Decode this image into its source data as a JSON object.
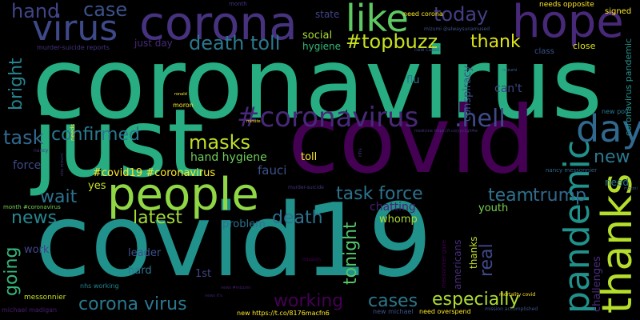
{
  "background": "#000000",
  "palette": {
    "purple": "#440154",
    "indigo": "#3b528b",
    "blue": "#31688e",
    "teal": "#21918c",
    "green": "#35b779",
    "lime": "#8fd744",
    "yellow": "#fde725"
  },
  "words": [
    {
      "text": "coronavirus",
      "color": "#27ad81"
    },
    {
      "text": "covid19",
      "color": "#21918c"
    },
    {
      "text": "covid",
      "color": "#440154"
    },
    {
      "text": "just",
      "color": "#27ad81"
    },
    {
      "text": "people",
      "color": "#8fd744"
    },
    {
      "text": "corona",
      "color": "#46327e"
    },
    {
      "text": "hope",
      "color": "#482878"
    },
    {
      "text": "like",
      "color": "#5ec962"
    },
    {
      "text": "virus",
      "color": "#3e4989"
    },
    {
      "text": "day",
      "color": "#31688e"
    },
    {
      "text": "pandemic",
      "color": "#21918c"
    },
    {
      "text": "thanks",
      "color": "#b5de2b"
    },
    {
      "text": "#coronavirus",
      "color": "#482878"
    },
    {
      "text": ".hell",
      "color": "#3e4989"
    },
    {
      "text": "today",
      "color": "#433e85"
    },
    {
      "text": "#topbuzz",
      "color": "#c8e020"
    },
    {
      "text": "death toll",
      "color": "#2a788e"
    },
    {
      "text": "thank",
      "color": "#dde318"
    },
    {
      "text": "hand",
      "color": "#414487"
    },
    {
      "text": "case",
      "color": "#3b528b"
    },
    {
      "text": "confirmed",
      "color": "#2a788e"
    },
    {
      "text": "bright",
      "color": "#26828e"
    },
    {
      "text": "masks",
      "color": "#bddf26"
    },
    {
      "text": "task",
      "color": "#31688e"
    },
    {
      "text": "new",
      "color": "#2a788e"
    },
    {
      "text": "hand hygiene",
      "color": "#6ece58"
    },
    {
      "text": "#covid19 #coronavirus",
      "color": "#fde725"
    },
    {
      "text": "force",
      "color": "#3e4989"
    },
    {
      "text": "fauci",
      "color": "#3b528b"
    },
    {
      "text": "toll",
      "color": "#fde725"
    },
    {
      "text": "wait",
      "color": "#2c728e"
    },
    {
      "text": "yes",
      "color": "#c8e020"
    },
    {
      "text": "task force",
      "color": "#2c728e"
    },
    {
      "text": "team",
      "color": "#2c728e"
    },
    {
      "text": "trump",
      "color": "#31688e"
    },
    {
      "text": "news",
      "color": "#25858e"
    },
    {
      "text": "latest",
      "color": "#a5db36"
    },
    {
      "text": "death",
      "color": "#2c728e"
    },
    {
      "text": "going",
      "color": "#35b779"
    },
    {
      "text": "tonight",
      "color": "#52c569"
    },
    {
      "text": "real",
      "color": "#3e4989"
    },
    {
      "text": "chatting",
      "color": "#481f70"
    },
    {
      "text": "youth",
      "color": "#7ad151"
    },
    {
      "text": "problem",
      "color": "#2c728e"
    },
    {
      "text": "whomp",
      "color": "#addc30"
    },
    {
      "text": "work",
      "color": "#414487"
    },
    {
      "text": "leader",
      "color": "#3b528b"
    },
    {
      "text": "hard",
      "color": "#2a788e"
    },
    {
      "text": "1st",
      "color": "#414487"
    },
    {
      "text": "corona virus",
      "color": "#2a788e"
    },
    {
      "text": "working",
      "color": "#440154"
    },
    {
      "text": "cases",
      "color": "#2a788e"
    },
    {
      "text": "especially",
      "color": "#addc30"
    },
    {
      "text": "americans",
      "color": "#472d7b"
    },
    {
      "text": "challenges",
      "color": "#472d7b"
    },
    {
      "text": "thanks",
      "color": "#bddf26"
    },
    {
      "text": "conspiracy",
      "color": "#3b528b"
    },
    {
      "text": "can't",
      "color": "#3e4989"
    },
    {
      "text": "flu",
      "color": "#2c728e"
    },
    {
      "text": "social",
      "color": "#a8db34"
    },
    {
      "text": "hygiene",
      "color": "#35b779"
    },
    {
      "text": "just day",
      "color": "#482878"
    },
    {
      "text": "state",
      "color": "#414487"
    },
    {
      "text": "need corona",
      "color": "#fde725"
    },
    {
      "text": "month",
      "color": "#46327e"
    },
    {
      "text": "needs opposite",
      "color": "#fde725"
    },
    {
      "text": "signed",
      "color": "#fde725"
    },
    {
      "text": "close",
      "color": "#dde318"
    },
    {
      "text": "class",
      "color": "#3b528b"
    },
    {
      "text": "coronavirus pandemic",
      "color": "#21918c"
    },
    {
      "text": "new poll",
      "color": "#2a788e"
    },
    {
      "text": "need",
      "color": "#2a788e"
    },
    {
      "text": "murder-suicide reports",
      "color": "#46327e"
    },
    {
      "text": "mizumi @alwaysunamused",
      "color": "#3b528b"
    },
    {
      "text": "new cases",
      "color": "#3b528b"
    },
    {
      "text": "nancy messonnier",
      "color": "#31688e"
    },
    {
      "text": "michael madigan",
      "color": "#481f70"
    },
    {
      "text": "messonnier",
      "color": "#c8e020"
    },
    {
      "text": "nhs working",
      "color": "#25858e"
    },
    {
      "text": "month #coronavirus",
      "color": "#7ad151"
    },
    {
      "text": "new michael",
      "color": "#3b528b"
    },
    {
      "text": "need overspend",
      "color": "#fde725"
    },
    {
      "text": "new https://t.co/8176macfn6",
      "color": "#fde725"
    },
    {
      "text": "mortality covid",
      "color": "#fde725"
    },
    {
      "text": "messonnier gave",
      "color": "#440154"
    },
    {
      "text": "mission accomplished",
      "color": "#3b528b"
    },
    {
      "text": "moron",
      "color": "#fde725"
    },
    {
      "text": "needs",
      "color": "#fde725"
    },
    {
      "text": "nancy",
      "color": "#46327e"
    },
    {
      "text": "medicine https://t.co/yyc1gh4w",
      "color": "#46327e"
    },
    {
      "text": "murder-suicide",
      "color": "#46327e"
    },
    {
      "text": "nhs",
      "color": "#46327e"
    },
    {
      "text": "minute",
      "color": "#fde725"
    },
    {
      "text": "mission",
      "color": "#440154"
    },
    {
      "text": "news it's",
      "color": "#481f70"
    },
    {
      "text": "news #mizumi",
      "color": "#481f70"
    },
    {
      "text": "mizumi",
      "color": "#31688e"
    },
    {
      "text": "ronald",
      "color": "#fde725"
    },
    {
      "text": "mzumi",
      "color": "#3b528b"
    },
    {
      "text": "nhs mizumi",
      "color": "#46327e"
    }
  ]
}
